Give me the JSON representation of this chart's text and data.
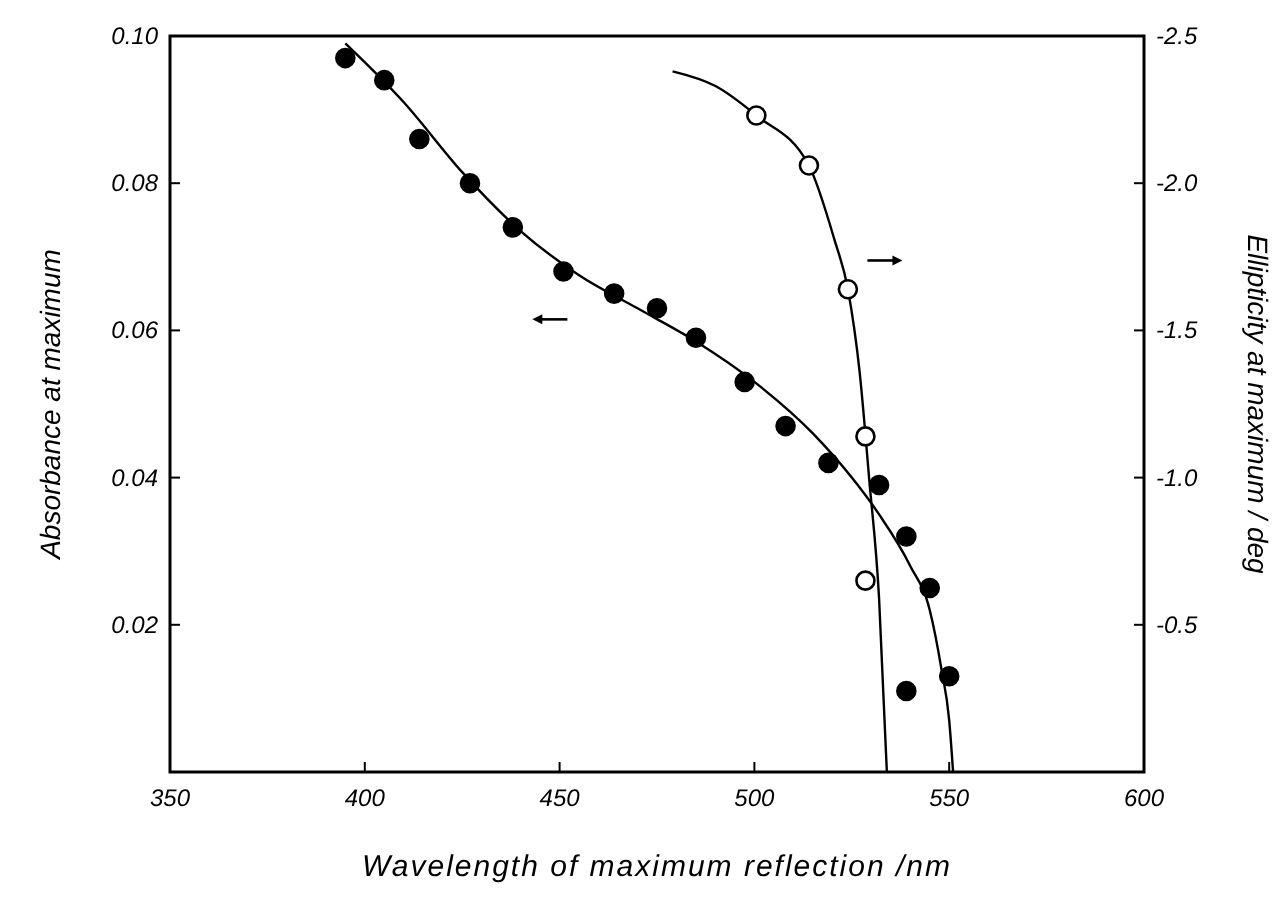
{
  "chart_data": {
    "type": "scatter",
    "xlabel": "Wavelength of maximum reflection /nm",
    "ylabel": "Absorbance at maximum",
    "y2label": "Ellipticity at maximum / deg",
    "xlim": [
      350,
      600
    ],
    "xticks": [
      350,
      400,
      450,
      500,
      550,
      600
    ],
    "ylim": [
      0,
      0.1
    ],
    "yticks": [
      {
        "value": 0,
        "label": null
      },
      0.02,
      0.04,
      0.06,
      0.08,
      {
        "value": 0.1,
        "label": "0.10"
      }
    ],
    "y2lim": [
      0,
      -2.5
    ],
    "y2ticks": [
      {
        "value": 0,
        "label": null
      },
      -0.5,
      {
        "value": -1,
        "label": "-1.0"
      },
      -1.5,
      {
        "value": -2,
        "label": "-2.0"
      },
      -2.5
    ],
    "grid": false,
    "series": [
      {
        "color": "#000000",
        "marker": "circle",
        "x": [
          395,
          405,
          414,
          427,
          438,
          451,
          464,
          475,
          485,
          497.5,
          508,
          519,
          532,
          539,
          545,
          539,
          550
        ],
        "values": [
          0.097,
          0.094,
          0.086,
          0.08,
          0.074,
          0.068,
          0.065,
          0.063,
          0.059,
          0.053,
          0.047,
          0.042,
          0.039,
          0.032,
          0.025,
          0.011,
          0.013
        ]
      },
      {
        "type": "line",
        "color": "#000000",
        "marker": "none",
        "line_style": "solid",
        "x": [
          395,
          410,
          425,
          440,
          455,
          470,
          485,
          500,
          515,
          525,
          532,
          540,
          545,
          548,
          550,
          551
        ],
        "values": [
          0.099,
          0.091,
          0.0815,
          0.0735,
          0.0675,
          0.063,
          0.0585,
          0.053,
          0.046,
          0.04,
          0.035,
          0.028,
          0.022,
          0.014,
          0.007,
          0
        ]
      },
      {
        "axis": "y2",
        "color": "#ffffff",
        "marker": "circle",
        "x": [
          500.5,
          514,
          524,
          528.5,
          528.5
        ],
        "values": [
          -2.23,
          -2.06,
          -1.64,
          -1.14,
          -0.65
        ]
      },
      {
        "type": "line",
        "axis": "y2",
        "color": "#000000",
        "marker": "none",
        "line_style": "solid",
        "x": [
          479,
          490,
          500.5,
          514,
          520.5,
          524,
          527,
          529.5,
          532,
          534
        ],
        "values": [
          -2.38,
          -2.33,
          -2.23,
          -2.06,
          -1.81,
          -1.64,
          -1.36,
          -0.99,
          -0.59,
          0
        ]
      }
    ]
  }
}
